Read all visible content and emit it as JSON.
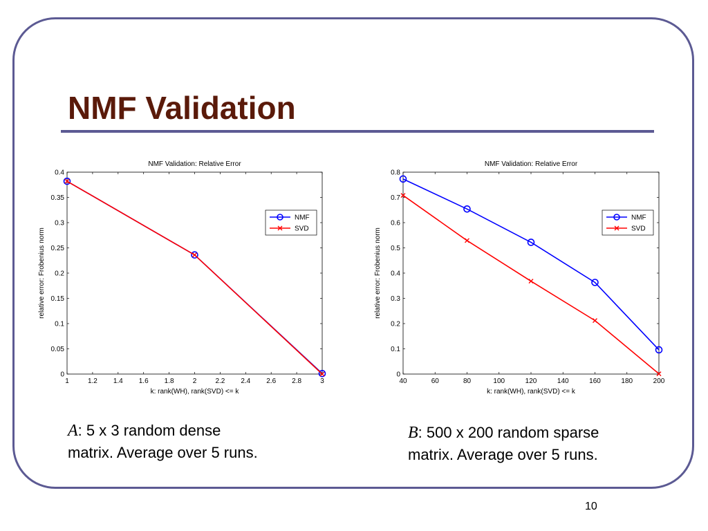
{
  "slide": {
    "title": "NMF Validation",
    "page_number": "10",
    "frame_color": "#5c5a93",
    "title_color": "#5a1a0a"
  },
  "captions": {
    "a": {
      "letter": "A",
      "text": ": 5 x 3 random dense",
      "line2": "matrix.  Average over 5 runs."
    },
    "b": {
      "letter": "B",
      "text": ": 500 x 200 random sparse",
      "line2": "matrix.  Average over 5 runs."
    }
  },
  "chart_data": [
    {
      "type": "line",
      "title": "NMF Validation: Relative Error",
      "xlabel": "k: rank(WH), rank(SVD) <= k",
      "ylabel": "relative error: Frobenius norm",
      "xlim": [
        1,
        3
      ],
      "ylim": [
        0,
        0.4
      ],
      "xticks": [
        1,
        1.2,
        1.4,
        1.6,
        1.8,
        2,
        2.2,
        2.4,
        2.6,
        2.8,
        3
      ],
      "xtick_labels": [
        "1",
        "1.2",
        "1.4",
        "1.6",
        "1.8",
        "2",
        "2.2",
        "2.4",
        "2.6",
        "2.8",
        "3"
      ],
      "yticks": [
        0,
        0.05,
        0.1,
        0.15,
        0.2,
        0.25,
        0.3,
        0.35,
        0.4
      ],
      "ytick_labels": [
        "0",
        "0.05",
        "0.1",
        "0.15",
        "0.2",
        "0.25",
        "0.3",
        "0.35",
        "0.4"
      ],
      "grid": false,
      "legend_position": "upper-right",
      "x": [
        1,
        2,
        3
      ],
      "series": [
        {
          "name": "NMF",
          "values": [
            0.382,
            0.236,
            0.001
          ],
          "color": "#0000ff",
          "marker": "circle"
        },
        {
          "name": "SVD",
          "values": [
            0.382,
            0.236,
            0.0
          ],
          "color": "#ff0000",
          "marker": "x"
        }
      ]
    },
    {
      "type": "line",
      "title": "NMF Validation: Relative Error",
      "xlabel": "k: rank(WH), rank(SVD) <= k",
      "ylabel": "relative error: Frobenius norm",
      "xlim": [
        40,
        200
      ],
      "ylim": [
        0,
        0.8
      ],
      "xticks": [
        40,
        60,
        80,
        100,
        120,
        140,
        160,
        180,
        200
      ],
      "xtick_labels": [
        "40",
        "60",
        "80",
        "100",
        "120",
        "140",
        "160",
        "180",
        "200"
      ],
      "yticks": [
        0,
        0.1,
        0.2,
        0.3,
        0.4,
        0.5,
        0.6,
        0.7,
        0.8
      ],
      "ytick_labels": [
        "0",
        "0.1",
        "0.2",
        "0.3",
        "0.4",
        "0.5",
        "0.6",
        "0.7",
        "0.8"
      ],
      "grid": false,
      "legend_position": "upper-right",
      "x": [
        40,
        80,
        120,
        160,
        200
      ],
      "series": [
        {
          "name": "NMF",
          "values": [
            0.773,
            0.654,
            0.522,
            0.363,
            0.096
          ],
          "color": "#0000ff",
          "marker": "circle"
        },
        {
          "name": "SVD",
          "values": [
            0.708,
            0.529,
            0.368,
            0.212,
            0.001
          ],
          "color": "#ff0000",
          "marker": "x"
        }
      ]
    }
  ]
}
